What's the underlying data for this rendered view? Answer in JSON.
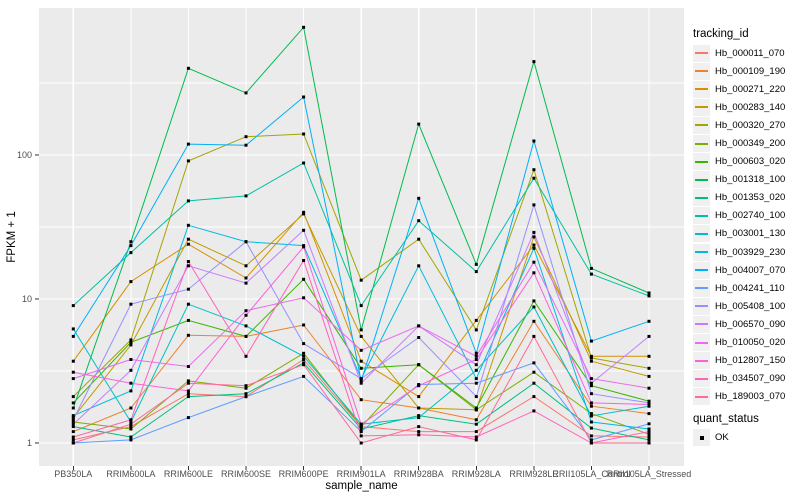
{
  "figure": {
    "background": "#FFFFFF",
    "panel_background": "#EBEBEB",
    "grid_color": "#FFFFFF",
    "tick_color": "#333333",
    "tick_label_color": "#4D4D4D",
    "point_color": "#000000"
  },
  "chart_data": {
    "type": "line",
    "xlabel": "sample_name",
    "ylabel": "FPKM + 1",
    "y_scale": "log10",
    "y_ticks": [
      1,
      10,
      100
    ],
    "y_tick_labels": [
      "1",
      "10",
      "100"
    ],
    "y_minor_ticks": [
      3.16,
      31.6,
      316
    ],
    "ylim": [
      1,
      1000
    ],
    "grid": true,
    "legend_position": "right",
    "point_shape": "square",
    "categories": [
      "PB350LA",
      "RRIM600LA",
      "RRIM600LE",
      "RRIM600SE",
      "RRIM600PE",
      "RRIM901LA",
      "RRIM928BA",
      "RRIM928LA",
      "RRIM928LE",
      "RRII105LA_Control",
      "RRII105LA_Stressed"
    ],
    "series": [
      {
        "name": "Hb_000011_070",
        "color": "#F8766D",
        "values": [
          1.05,
          1.3,
          2.2,
          2.1,
          3.8,
          1.3,
          1.2,
          1.2,
          2.1,
          1.12,
          1.1
        ]
      },
      {
        "name": "Hb_000109_190",
        "color": "#EB8335",
        "values": [
          1.2,
          1.75,
          5.6,
          5.5,
          6.6,
          2.0,
          1.75,
          1.45,
          7.0,
          1.8,
          1.6
        ]
      },
      {
        "name": "Hb_000271_220",
        "color": "#D89000",
        "values": [
          3.7,
          13.2,
          24,
          14,
          40,
          3.7,
          2.1,
          7.1,
          23.7,
          4.0,
          4.0
        ]
      },
      {
        "name": "Hb_000283_140",
        "color": "#C19A00",
        "values": [
          1.5,
          4.8,
          26,
          17,
          39,
          5.5,
          1.75,
          1.7,
          27,
          3.7,
          2.9
        ]
      },
      {
        "name": "Hb_000320_270",
        "color": "#A3A500",
        "values": [
          2.1,
          5.2,
          91,
          134,
          140,
          13.5,
          26,
          6.1,
          79,
          3.9,
          3.3
        ]
      },
      {
        "name": "Hb_000349_200",
        "color": "#7CAE00",
        "values": [
          1.4,
          1.25,
          2.7,
          2.4,
          4.2,
          1.3,
          3.5,
          1.7,
          3.1,
          1.6,
          1.15
        ]
      },
      {
        "name": "Hb_000603_020",
        "color": "#39B600",
        "values": [
          1.9,
          5.0,
          7.1,
          5.5,
          13.7,
          3.3,
          3.5,
          1.75,
          9.7,
          2.5,
          1.95
        ]
      },
      {
        "name": "Hb_001318_100",
        "color": "#00BB4E",
        "values": [
          1.75,
          25,
          400,
          270,
          770,
          6.1,
          164,
          17.4,
          445,
          16.3,
          11
        ]
      },
      {
        "name": "Hb_001353_020",
        "color": "#00BF7D",
        "values": [
          1.3,
          1.1,
          2.1,
          2.2,
          3.6,
          1.25,
          1.55,
          1.35,
          2.6,
          1.27,
          1.05
        ]
      },
      {
        "name": "Hb_002740_100",
        "color": "#00C1A3",
        "values": [
          9.0,
          21,
          48,
          52,
          88,
          9.0,
          35,
          15.5,
          69,
          14.9,
          10.5
        ]
      },
      {
        "name": "Hb_003001_130",
        "color": "#00BFC4",
        "values": [
          6.2,
          1.4,
          9.2,
          6.5,
          4.0,
          1.35,
          1.5,
          3.2,
          8.8,
          1.54,
          1.8
        ]
      },
      {
        "name": "Hb_003929_230",
        "color": "#00BADE",
        "values": [
          1.55,
          2.3,
          32.5,
          25,
          23.5,
          2.8,
          17,
          2.8,
          22.5,
          1.4,
          1.25
        ]
      },
      {
        "name": "Hb_004007_070",
        "color": "#00B0F6",
        "values": [
          5.5,
          23.5,
          119,
          117,
          253,
          2.7,
          50,
          4.2,
          125,
          5.1,
          7.0
        ]
      },
      {
        "name": "Hb_004241_110",
        "color": "#619CFF",
        "values": [
          1.0,
          1.05,
          1.5,
          2.1,
          2.9,
          1.2,
          2.55,
          2.6,
          3.6,
          1.05,
          1.36
        ]
      },
      {
        "name": "Hb_005408_100",
        "color": "#9590FF",
        "values": [
          1.45,
          9.2,
          11.7,
          25,
          4.9,
          2.8,
          5.4,
          2.1,
          45,
          2.2,
          1.9
        ]
      },
      {
        "name": "Hb_006570_090",
        "color": "#C77CFF",
        "values": [
          1.35,
          3.2,
          17,
          12.9,
          30,
          2.6,
          6.5,
          3.5,
          29,
          2.6,
          5.5
        ]
      },
      {
        "name": "Hb_010050_020",
        "color": "#E76BF3",
        "values": [
          2.8,
          3.8,
          3.4,
          8.3,
          10.2,
          4.4,
          6.5,
          4.0,
          18,
          2.8,
          2.4
        ]
      },
      {
        "name": "Hb_012807_150",
        "color": "#FA62DB",
        "values": [
          3.1,
          2.6,
          2.3,
          7.7,
          23,
          1.35,
          2.5,
          3.8,
          15.2,
          1.9,
          1.85
        ]
      },
      {
        "name": "Hb_034507_090",
        "color": "#FF62BC",
        "values": [
          1.1,
          1.45,
          18.2,
          4.0,
          18.5,
          1.12,
          1.14,
          1.1,
          1.67,
          1.0,
          1.2
        ]
      },
      {
        "name": "Hb_189003_070",
        "color": "#FF6A98",
        "values": [
          1.0,
          1.35,
          2.6,
          2.5,
          3.5,
          1.0,
          1.3,
          1.05,
          5.5,
          1.0,
          1.0
        ]
      }
    ]
  },
  "legend": {
    "tracking_title": "tracking_id",
    "quant_title": "quant_status",
    "quant_items": [
      {
        "label": "OK"
      }
    ]
  }
}
